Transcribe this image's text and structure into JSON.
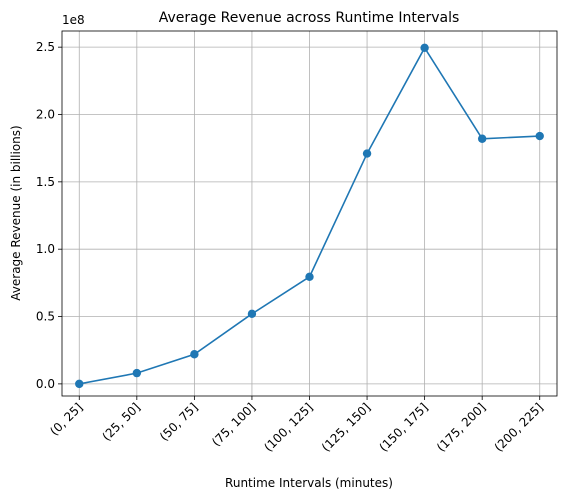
{
  "chart_data": {
    "type": "line",
    "title": "Average Revenue across Runtime Intervals",
    "xlabel": "Runtime Intervals (minutes)",
    "ylabel": "Average Revenue (in billions)",
    "y_offset_label": "1e8",
    "categories": [
      "(0, 25]",
      "(25, 50]",
      "(50, 75]",
      "(75, 100]",
      "(100, 125]",
      "(125, 150]",
      "(150, 175]",
      "(175, 200]",
      "(200, 225]"
    ],
    "values": [
      0,
      8000000,
      22000000,
      52000000,
      79500000,
      171000000,
      249500000,
      182000000,
      184000000
    ],
    "ylim": [
      -9000000,
      262000000
    ],
    "yticks": [
      0,
      50000000,
      100000000,
      150000000,
      200000000,
      250000000
    ],
    "ytick_labels": [
      "0.0",
      "0.5",
      "1.0",
      "1.5",
      "2.0",
      "2.5"
    ],
    "grid": true,
    "line_color": "#1f77b4",
    "marker": "circle"
  }
}
